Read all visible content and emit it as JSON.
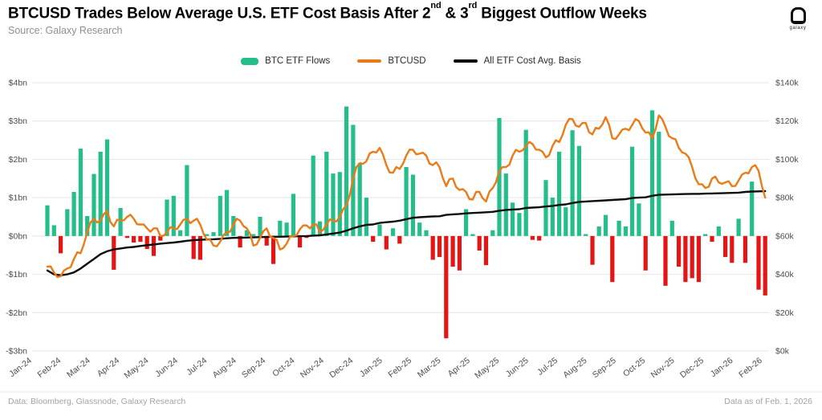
{
  "title": {
    "pre": "BTCUSD Trades Below Average U.S. ETF Cost Basis After 2",
    "sup1": "nd",
    "mid": " & 3",
    "sup2": "rd",
    "post": " Biggest Outflow Weeks"
  },
  "source": "Source: Galaxy Research",
  "logo_text": "galaxy",
  "footer": {
    "left": "Data: Bloomberg, Glassnode, Galaxy Research",
    "right": "Data as of Feb. 1, 2026"
  },
  "legend": {
    "items": [
      {
        "label": "BTC ETF Flows",
        "color": "#25bd8a",
        "type": "bar"
      },
      {
        "label": "BTCUSD",
        "color": "#ea7b16",
        "type": "line"
      },
      {
        "label": "All ETF Cost Avg. Basis",
        "color": "#0d0d0d",
        "type": "line"
      }
    ]
  },
  "colors": {
    "flows_positive": "#25bd8a",
    "flows_negative": "#e31515",
    "btcusd": "#ea7b16",
    "cost_basis": "#0d0d0d",
    "grid": "#e4e4e4"
  },
  "chart_data": {
    "type": "combo",
    "x_unit": "weekly, Jan-2024 to Feb-2026",
    "x_ticks": [
      "Jan-24",
      "Feb-24",
      "Mar-24",
      "Apr-24",
      "May-24",
      "Jun-24",
      "Jul-24",
      "Aug-24",
      "Sep-24",
      "Oct-24",
      "Nov-24",
      "Dec-24",
      "Jan-25",
      "Feb-25",
      "Mar-25",
      "Apr-25",
      "May-25",
      "Jun-25",
      "Jul-25",
      "Aug-25",
      "Sep-25",
      "Oct-25",
      "Nov-25",
      "Dec-25",
      "Jan-26",
      "Feb-26"
    ],
    "y_axis_left": {
      "labels": [
        "$4bn",
        "$3bn",
        "$2bn",
        "$1bn",
        "$0bn",
        "-$1bn",
        "-$2bn",
        "-$3bn"
      ],
      "values": [
        4,
        3,
        2,
        1,
        0,
        -1,
        -2,
        -3
      ],
      "range": [
        -3,
        4
      ]
    },
    "y_axis_right": {
      "labels": [
        "$140k",
        "$120k",
        "$100k",
        "$80k",
        "$60k",
        "$40k",
        "$20k",
        "$0k"
      ],
      "values": [
        140,
        120,
        100,
        80,
        60,
        40,
        20,
        0
      ],
      "range": [
        0,
        140
      ]
    },
    "grid": "horizontal",
    "legend_position": "top-center",
    "series": {
      "flows": {
        "name": "BTC ETF Flows",
        "type": "bar",
        "axis": "left",
        "unit": "$bn",
        "values": [
          0.8,
          0.28,
          -0.45,
          0.7,
          1.15,
          2.28,
          0.52,
          1.62,
          2.2,
          2.52,
          -0.88,
          0.73,
          -0.05,
          -0.17,
          -0.15,
          -0.34,
          -0.52,
          -0.12,
          0.95,
          1.05,
          0.15,
          1.85,
          -0.6,
          -0.62,
          0.05,
          0.1,
          1.05,
          1.2,
          0.52,
          -0.3,
          0.15,
          0.05,
          0.5,
          -0.25,
          -0.73,
          0.4,
          0.35,
          1.1,
          -0.3,
          -0.05,
          2.1,
          0.38,
          2.2,
          1.63,
          1.67,
          3.38,
          2.9,
          1.9,
          1.0,
          -0.15,
          0.3,
          -0.35,
          0.2,
          -0.2,
          1.8,
          1.6,
          0.35,
          0.15,
          -0.62,
          -0.55,
          -2.67,
          -0.8,
          -0.9,
          0.7,
          0.05,
          -0.38,
          -0.76,
          0.15,
          3.08,
          1.63,
          0.87,
          0.6,
          2.77,
          -0.1,
          -0.12,
          1.46,
          1.0,
          2.2,
          0.75,
          2.76,
          2.35,
          0.05,
          -0.75,
          0.25,
          0.55,
          -1.2,
          0.4,
          0.25,
          2.33,
          0.85,
          -0.9,
          3.28,
          2.72,
          -1.3,
          0.4,
          -0.8,
          -1.2,
          -1.1,
          -1.2,
          0.05,
          -0.15,
          0.25,
          -0.55,
          -0.7,
          0.45,
          -0.7,
          1.42,
          -1.4,
          -1.55
        ]
      },
      "btcusd": {
        "name": "BTCUSD",
        "type": "line",
        "axis": "right",
        "unit": "$k",
        "values": [
          44,
          41,
          39,
          43,
          48,
          51,
          62,
          69,
          68,
          73,
          65,
          68,
          70,
          69,
          66,
          64,
          64,
          60,
          62,
          64,
          66,
          69,
          68,
          66,
          58,
          55,
          57,
          62,
          66,
          68,
          64,
          55,
          59,
          64,
          59,
          53,
          56,
          60,
          63.5,
          65.5,
          66,
          62,
          66,
          68,
          70,
          76,
          90,
          98,
          99,
          104,
          106,
          97,
          93,
          95,
          102,
          105,
          103,
          102,
          97,
          96,
          86,
          90,
          84,
          83,
          79,
          83,
          78,
          85,
          94,
          96,
          102,
          104,
          107,
          108,
          105,
          101,
          107,
          109,
          118,
          121,
          117,
          119,
          113,
          116,
          122,
          111,
          113,
          116,
          118,
          120,
          114,
          111,
          123,
          117,
          111,
          106,
          103,
          96,
          87,
          85,
          90,
          88,
          88,
          86,
          89,
          93,
          96,
          94,
          80
        ]
      },
      "cost_basis": {
        "name": "All ETF Cost Avg. Basis",
        "type": "line",
        "axis": "right",
        "unit": "$k",
        "values": [
          42,
          40,
          39.5,
          40,
          41,
          43,
          45.5,
          48,
          50.5,
          52,
          53,
          53.5,
          54,
          54.3,
          54.8,
          55.2,
          55.6,
          56,
          56.3,
          56.6,
          57,
          57.5,
          57.8,
          58,
          58.2,
          58.3,
          58.5,
          58.8,
          59,
          59.1,
          59.2,
          59.3,
          59.4,
          59.5,
          59.6,
          59.6,
          59.7,
          59.8,
          59.9,
          60,
          60.2,
          60.3,
          60.8,
          61.3,
          61.8,
          62.8,
          64,
          65,
          65.8,
          66,
          66.8,
          67.2,
          67.5,
          68,
          68.8,
          69.5,
          69.8,
          70,
          70.2,
          70.3,
          71,
          71.3,
          71.5,
          71.8,
          72,
          72.2,
          72.4,
          72.6,
          73.2,
          73.6,
          73.8,
          74,
          74.6,
          74.8,
          75,
          75.4,
          75.7,
          76.2,
          76.5,
          77.2,
          77.8,
          78,
          78.2,
          78.4,
          78.6,
          78.8,
          79,
          79.2,
          79.8,
          80,
          80.2,
          81,
          81.5,
          81.6,
          81.7,
          81.8,
          81.9,
          82,
          82,
          82.1,
          82.2,
          82.3,
          82.4,
          82.5,
          82.6,
          83,
          83.2,
          83.3,
          83.4
        ]
      }
    }
  }
}
